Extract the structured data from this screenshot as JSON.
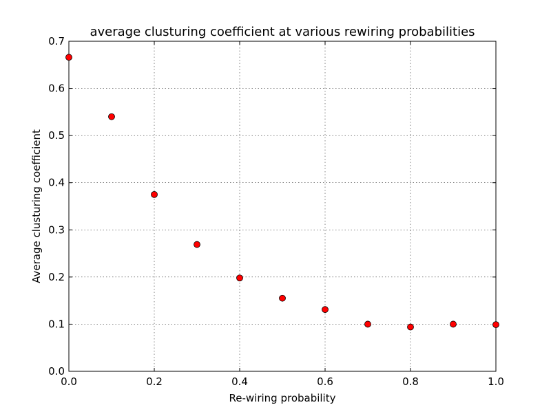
{
  "chart_data": {
    "type": "scatter",
    "title": "average clusturing coefficient at various rewiring probabilities",
    "xlabel": "Re-wiring probability",
    "ylabel": "Average clusturing coefficient",
    "xlim": [
      0.0,
      1.0
    ],
    "ylim": [
      0.0,
      0.7
    ],
    "xticks": [
      0.0,
      0.2,
      0.4,
      0.6,
      0.8,
      1.0
    ],
    "xtick_labels": [
      "0.0",
      "0.2",
      "0.4",
      "0.6",
      "0.8",
      "1.0"
    ],
    "yticks": [
      0.0,
      0.1,
      0.2,
      0.3,
      0.4,
      0.5,
      0.6,
      0.7
    ],
    "ytick_labels": [
      "0.0",
      "0.1",
      "0.2",
      "0.3",
      "0.4",
      "0.5",
      "0.6",
      "0.7"
    ],
    "grid": true,
    "marker_color": "#ff0000",
    "series": [
      {
        "x": [
          0.0,
          0.1,
          0.2,
          0.3,
          0.4,
          0.5,
          0.6,
          0.7,
          0.8,
          0.9,
          1.0
        ],
        "y": [
          0.666,
          0.54,
          0.375,
          0.269,
          0.198,
          0.155,
          0.131,
          0.1,
          0.094,
          0.1,
          0.099
        ]
      }
    ]
  }
}
